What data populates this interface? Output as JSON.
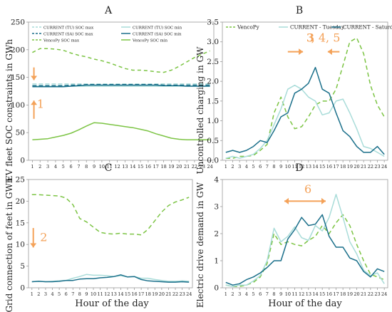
{
  "chart_data": [
    {
      "panel_label": "A",
      "type": "line",
      "x": [
        1,
        2,
        3,
        4,
        5,
        6,
        7,
        8,
        9,
        10,
        11,
        12,
        13,
        14,
        15,
        16,
        17,
        18,
        19,
        20,
        21,
        22,
        23,
        24
      ],
      "xlabel": "",
      "ylabel": "EV fleet SOC constraints in GWh",
      "ylim": [
        0,
        250
      ],
      "yticks": [
        "0",
        "50",
        "100",
        "150",
        "200",
        "250"
      ],
      "legend": {
        "placement": "top",
        "columns": 2
      },
      "annotations": [
        {
          "text": "1",
          "color": "#f4a259",
          "x": 1.6,
          "y": 95
        }
      ],
      "arrows": [
        {
          "color": "#f4a259",
          "x": 1.2,
          "from": 168,
          "to": 145
        },
        {
          "color": "#f4a259",
          "x": 1.2,
          "from": 75,
          "to": 108
        }
      ],
      "series": [
        {
          "name": "CURRENT (TU) SOC max",
          "color": "#a9dcd9",
          "dash": "6,3",
          "values": [
            138,
            138,
            138,
            138,
            138,
            138,
            138,
            138,
            138,
            138,
            138,
            138,
            138,
            138,
            138,
            138,
            138,
            138,
            138,
            138,
            138,
            138,
            138,
            138
          ]
        },
        {
          "name": "CURRENT (TU) SOC min",
          "color": "#a9dcd9",
          "dash": "",
          "values": [
            134,
            134,
            134,
            134,
            134,
            134,
            134,
            134,
            134,
            134,
            134,
            134,
            134,
            134,
            134,
            134,
            134,
            134,
            134,
            134,
            134,
            134,
            134,
            134
          ]
        },
        {
          "name": "CURRENT (SA) SOC max",
          "color": "#1a6f8a",
          "dash": "6,3",
          "values": [
            135,
            135,
            135,
            135,
            135,
            136,
            136,
            137,
            137,
            137,
            137,
            137,
            137,
            137,
            137,
            137,
            137,
            136,
            136,
            136,
            136,
            136,
            136,
            136
          ]
        },
        {
          "name": "CURRENT (SA) SOC min",
          "color": "#1a6f8a",
          "dash": "",
          "values": [
            133,
            133,
            133,
            133,
            133,
            134,
            135,
            136,
            136,
            136,
            136,
            136,
            136,
            136,
            136,
            136,
            136,
            135,
            135,
            135,
            134,
            134,
            134,
            134
          ]
        },
        {
          "name": "VencoPy SOC max",
          "color": "#7cc444",
          "dash": "5,4",
          "values": [
            195,
            202,
            202,
            201,
            199,
            194,
            190,
            187,
            183,
            180,
            176,
            171,
            166,
            163,
            163,
            162,
            160,
            159,
            163,
            170,
            178,
            186,
            192,
            198
          ]
        },
        {
          "name": "VencoPy SOC min",
          "color": "#7cc444",
          "dash": "",
          "values": [
            37,
            38,
            39,
            42,
            45,
            49,
            55,
            62,
            68,
            67,
            65,
            63,
            61,
            59,
            56,
            53,
            48,
            44,
            40,
            38,
            37,
            37,
            37,
            37
          ]
        }
      ]
    },
    {
      "panel_label": "B",
      "type": "line",
      "x": [
        1,
        2,
        3,
        4,
        5,
        6,
        7,
        8,
        9,
        10,
        11,
        12,
        13,
        14,
        15,
        16,
        17,
        18,
        19,
        20,
        21,
        22,
        23,
        24
      ],
      "xlabel": "",
      "ylabel": "Uncontrolled charging in GW",
      "ylim": [
        0,
        3.5
      ],
      "yticks": [
        "0.0",
        "0.5",
        "1.0",
        "1.5",
        "2.0",
        "2.5",
        "3.0",
        "3.5"
      ],
      "legend": {
        "placement": "top",
        "columns": 3
      },
      "annotations": [
        {
          "text": "3",
          "bold": true,
          "color": "#f4a259",
          "x": 12.7,
          "y": 3.0
        },
        {
          "text": ", 4, 5",
          "bold": false,
          "color": "#f4a259",
          "x": 13.4,
          "y": 3.0
        }
      ],
      "arrows": [
        {
          "color": "#f4a259",
          "y": 2.75,
          "from": 10.0,
          "to": 12.2
        },
        {
          "color": "#f4a259",
          "y": 2.75,
          "from": 17.5,
          "to": 15.8
        }
      ],
      "series": [
        {
          "name": "VencoPy",
          "color": "#7cc444",
          "dash": "6,4",
          "values": [
            0.05,
            0.05,
            0.1,
            0.1,
            0.12,
            0.25,
            0.4,
            1.2,
            1.6,
            1.1,
            0.8,
            0.85,
            1.1,
            1.4,
            1.5,
            1.5,
            1.8,
            2.4,
            3.0,
            3.1,
            2.7,
            1.9,
            1.4,
            1.1
          ]
        },
        {
          "name": "CURRENT - Tuesday",
          "color": "#a9dcd9",
          "dash": "",
          "values": [
            0.05,
            0.1,
            0.05,
            0.1,
            0.15,
            0.3,
            0.5,
            0.9,
            1.3,
            1.8,
            1.9,
            1.8,
            1.6,
            1.5,
            1.15,
            1.2,
            1.5,
            1.55,
            1.2,
            0.8,
            0.35,
            0.3,
            0.2,
            0.1
          ]
        },
        {
          "name": "CURRENT - Saturday",
          "color": "#1a6f8a",
          "dash": "",
          "values": [
            0.2,
            0.25,
            0.2,
            0.25,
            0.35,
            0.5,
            0.45,
            0.75,
            1.1,
            1.2,
            1.7,
            1.8,
            1.95,
            2.35,
            1.8,
            1.7,
            1.2,
            0.75,
            0.6,
            0.35,
            0.2,
            0.2,
            0.35,
            0.15
          ]
        }
      ]
    },
    {
      "panel_label": "C",
      "type": "line",
      "x": [
        1,
        2,
        3,
        4,
        5,
        6,
        7,
        8,
        9,
        10,
        11,
        12,
        13,
        14,
        15,
        16,
        17,
        18,
        19,
        20,
        21,
        22,
        23,
        24
      ],
      "xlabel": "Hour of the day",
      "ylabel": "Grid connection of feet in GWh",
      "ylim": [
        0,
        25
      ],
      "yticks": [
        "0",
        "5",
        "10",
        "15",
        "20",
        "25"
      ],
      "annotations": [
        {
          "text": "2",
          "color": "#f4a259",
          "x": 2.2,
          "y": 10.8
        }
      ],
      "arrows": [
        {
          "color": "#f4a259",
          "x": 1.2,
          "from": 13.8,
          "to": 9.3
        }
      ],
      "series": [
        {
          "name": "VencoPy",
          "color": "#7cc444",
          "dash": "6,4",
          "values": [
            21.5,
            21.5,
            21.4,
            21.3,
            21.2,
            20.7,
            19.2,
            16.0,
            15.2,
            14.0,
            12.8,
            12.5,
            12.4,
            12.6,
            12.4,
            12.4,
            12.2,
            13.5,
            15.5,
            17.5,
            19.0,
            19.8,
            20.3,
            20.9
          ]
        },
        {
          "name": "CURRENT - Tuesday",
          "color": "#a9dcd9",
          "dash": "",
          "values": [
            1.4,
            1.5,
            1.4,
            1.5,
            1.6,
            1.7,
            2.2,
            2.6,
            3.1,
            2.9,
            2.9,
            2.8,
            2.6,
            2.8,
            2.5,
            2.6,
            2.2,
            2.2,
            1.9,
            1.7,
            1.5,
            1.5,
            1.6,
            1.5
          ]
        },
        {
          "name": "CURRENT - Saturday",
          "color": "#1a6f8a",
          "dash": "",
          "values": [
            1.4,
            1.5,
            1.4,
            1.4,
            1.5,
            1.7,
            1.7,
            2.0,
            2.1,
            2.1,
            2.3,
            2.4,
            2.6,
            3.0,
            2.5,
            2.6,
            1.9,
            1.6,
            1.5,
            1.4,
            1.3,
            1.3,
            1.4,
            1.3
          ]
        }
      ]
    },
    {
      "panel_label": "D",
      "type": "line",
      "x": [
        1,
        2,
        3,
        4,
        5,
        6,
        7,
        8,
        9,
        10,
        11,
        12,
        13,
        14,
        15,
        16,
        17,
        18,
        19,
        20,
        21,
        22,
        23,
        24
      ],
      "xlabel": "Hour of the day",
      "ylabel": "Electric drive demand in GW",
      "ylim": [
        0,
        4
      ],
      "yticks": [
        "0",
        "1",
        "2",
        "3",
        "4"
      ],
      "annotations": [
        {
          "text": "6",
          "color": "#f4a259",
          "x": 12.4,
          "y": 3.5
        }
      ],
      "arrows": [
        {
          "color": "#f4a259",
          "y": 3.2,
          "from": 9.5,
          "to": 15.5,
          "double": true
        }
      ],
      "series": [
        {
          "name": "VencoPy",
          "color": "#7cc444",
          "dash": "6,4",
          "values": [
            0.1,
            0.05,
            0.05,
            0.1,
            0.2,
            0.4,
            0.9,
            2.0,
            1.6,
            1.7,
            1.6,
            1.55,
            1.75,
            1.9,
            2.3,
            2.0,
            2.4,
            2.7,
            2.3,
            1.6,
            1.0,
            0.5,
            0.4,
            0.3
          ]
        },
        {
          "name": "CURRENT - Tuesday",
          "color": "#a9dcd9",
          "dash": "",
          "values": [
            0.1,
            0.05,
            0.1,
            0.1,
            0.25,
            0.45,
            1.0,
            2.2,
            1.7,
            1.9,
            2.25,
            1.85,
            1.75,
            2.3,
            2.1,
            2.6,
            3.45,
            2.6,
            1.7,
            1.25,
            0.65,
            0.45,
            0.55,
            0.15
          ]
        },
        {
          "name": "CURRENT - Saturday",
          "color": "#1a6f8a",
          "dash": "",
          "values": [
            0.2,
            0.1,
            0.15,
            0.3,
            0.4,
            0.55,
            0.75,
            1.0,
            1.0,
            1.8,
            2.15,
            2.6,
            2.3,
            2.35,
            2.7,
            1.9,
            1.5,
            1.5,
            1.1,
            1.0,
            0.6,
            0.4,
            0.7,
            0.6
          ]
        }
      ]
    }
  ]
}
